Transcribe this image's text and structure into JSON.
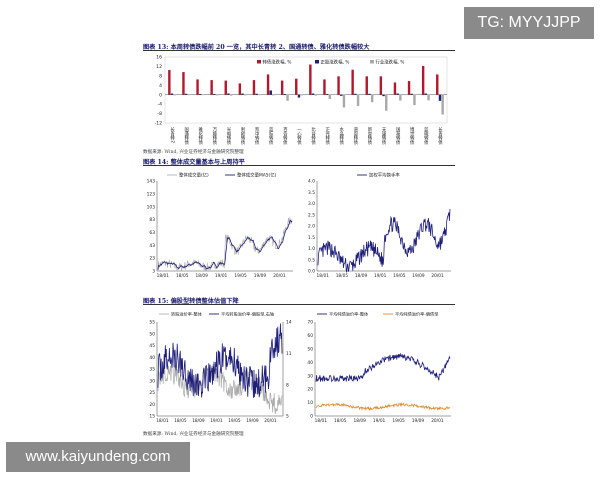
{
  "overlays": {
    "tag_text": "TG: MYYJJPP",
    "watermark_text": "www.kaiyundeng.com"
  },
  "fig13": {
    "title": "图表 13: 本周转债跌幅前 20 一览，其中长青转 2、国通转债、雅化转债跌幅较大"
  },
  "fig14": {
    "title": "图表 14: 整体成交量基本与上周持平"
  },
  "fig15": {
    "title": "图表 15: 偏股型转债整体估值下降"
  },
  "source_text": "数据来源: Wind, 兴业证券经济与金融研究院整理",
  "colors": {
    "red": "#b2182b",
    "navy": "#1f1f7a",
    "grey": "#a9a9a9",
    "orange": "#e08a2a"
  },
  "chart_data": [
    {
      "id": "fig13",
      "type": "bar",
      "categories": [
        "长青转2",
        "国通转债",
        "雅化转债",
        "万顺转债",
        "光电转债",
        "利欧转债",
        "凯中转债",
        "蓝标转债",
        "百合转债",
        "一心转债",
        "比音转债",
        "正元转债",
        "水晶转债",
        "道恩转债",
        "新泉转债",
        "天康转债",
        "国祯转债",
        "博世转债",
        "蓝晓转债",
        "长青转债"
      ],
      "series": [
        {
          "name": "转债涨跌幅, %",
          "values": [
            10.5,
            9.6,
            6.5,
            6.2,
            6.0,
            4.8,
            6.2,
            8.6,
            6.0,
            6.8,
            12.8,
            6.5,
            7.8,
            10.6,
            7.8,
            7.8,
            5.2,
            5.8,
            12.2,
            8.6
          ]
        },
        {
          "name": "正股涨跌幅, %",
          "values": [
            0.5,
            0.4,
            0.3,
            0.3,
            0.5,
            0.5,
            0.4,
            1.8,
            0.3,
            -1.2,
            0.5,
            0.3,
            -0.5,
            0.4,
            0.4,
            -0.6,
            0.5,
            0.4,
            0.5,
            -2.6
          ]
        },
        {
          "name": "行业涨跌幅, %",
          "values": [
            -0.3,
            -0.2,
            -0.2,
            -0.3,
            -0.4,
            -0.3,
            -0.2,
            -0.3,
            -2.6,
            -0.3,
            -0.4,
            -1.8,
            -5.4,
            -4.8,
            -3.2,
            -6.8,
            -2.5,
            -4.4,
            -2.4,
            -8.4
          ]
        }
      ],
      "y_ticks": [
        "16",
        "12",
        "8",
        "4",
        "0",
        "-4",
        "-8",
        "-12"
      ],
      "ylim": [
        -12,
        16
      ]
    },
    {
      "id": "fig14-left",
      "type": "line",
      "series": [
        {
          "name": "整体成交量(亿)"
        },
        {
          "name": "整体成交量MA5(亿)"
        }
      ],
      "x_ticks": [
        "18/01",
        "18/05",
        "18/09",
        "19/01",
        "19/05",
        "19/09",
        "20/01"
      ],
      "y_ticks": [
        "143",
        "123",
        "103",
        "83",
        "63",
        "43",
        "23",
        "3"
      ],
      "ylim": [
        3,
        143
      ]
    },
    {
      "id": "fig14-right",
      "type": "line",
      "series": [
        {
          "name": "加权平均换手率"
        }
      ],
      "x_ticks": [
        "18/01",
        "18/05",
        "18/09",
        "19/01",
        "19/05",
        "19/09",
        "20/01"
      ],
      "y_ticks": [
        "4.0",
        "3.5",
        "3.0",
        "2.5",
        "2.0",
        "1.5",
        "1.0",
        "0.5",
        "0.0"
      ],
      "ylim": [
        0,
        4
      ]
    },
    {
      "id": "fig15-left",
      "type": "line",
      "series": [
        {
          "name": "转股溢价率-整体"
        },
        {
          "name": "平均转股溢价率-偏股型,右轴"
        }
      ],
      "x_ticks": [
        "18/01",
        "18/05",
        "18/09",
        "19/01",
        "19/05",
        "19/09",
        "20/01"
      ],
      "y_ticks_left": [
        "55",
        "50",
        "45",
        "40",
        "35",
        "30",
        "25",
        "20",
        "15"
      ],
      "ylim_left": [
        15,
        55
      ],
      "y_ticks_right": [
        "14",
        "11",
        "8",
        "5"
      ],
      "ylim_right": [
        5,
        14
      ]
    },
    {
      "id": "fig15-right",
      "type": "line",
      "series": [
        {
          "name": "平均纯债溢价率-整体"
        },
        {
          "name": "平均纯债溢价率-偏债型"
        }
      ],
      "x_ticks": [
        "18/01",
        "18/05",
        "18/09",
        "19/01",
        "19/05",
        "19/09",
        "20/01"
      ],
      "y_ticks": [
        "70",
        "60",
        "50",
        "40",
        "30",
        "20",
        "10",
        "0"
      ],
      "ylim": [
        0,
        70
      ]
    }
  ]
}
